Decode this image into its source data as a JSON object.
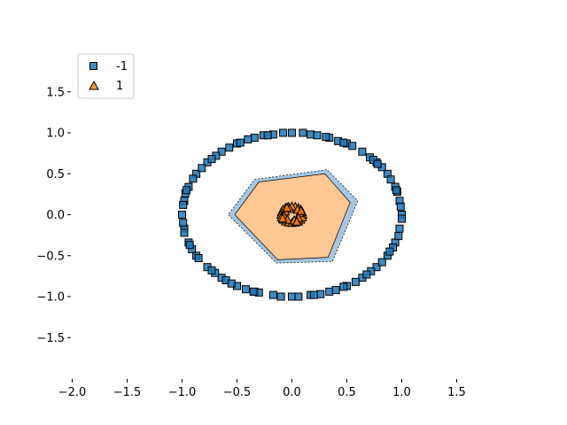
{
  "chart_data": {
    "type": "scatter",
    "title": "",
    "xlabel": "",
    "ylabel": "",
    "xlim": [
      -2.0,
      1.9
    ],
    "ylim": [
      -1.95,
      2.0
    ],
    "xticks": [
      -2.0,
      -1.5,
      -1.0,
      -0.5,
      0.0,
      0.5,
      1.0,
      1.5
    ],
    "xtick_labels": [
      "−2.0",
      "−1.5",
      "−1.0",
      "−0.5",
      "0.0",
      "0.5",
      "1.0",
      "1.5"
    ],
    "yticks": [
      -1.5,
      -1.0,
      -0.5,
      0.0,
      0.5,
      1.0,
      1.5
    ],
    "ytick_labels": [
      "−1.5",
      "−1.0",
      "−0.5",
      "0.0",
      "0.5",
      "1.0",
      "1.5"
    ],
    "grid": false,
    "legend_position": "top-left",
    "series": [
      {
        "name": "-1",
        "marker": "square",
        "color": "#1f77b4",
        "points": [
          [
            1.0,
            0.0
          ],
          [
            0.98,
            0.17
          ],
          [
            0.94,
            0.34
          ],
          [
            0.87,
            0.5
          ],
          [
            0.77,
            0.64
          ],
          [
            0.64,
            0.77
          ],
          [
            0.5,
            0.87
          ],
          [
            0.34,
            0.94
          ],
          [
            0.17,
            0.98
          ],
          [
            0.0,
            1.0
          ],
          [
            -0.17,
            0.98
          ],
          [
            -0.34,
            0.94
          ],
          [
            -0.5,
            0.87
          ],
          [
            -0.64,
            0.77
          ],
          [
            -0.77,
            0.64
          ],
          [
            -0.87,
            0.5
          ],
          [
            -0.94,
            0.34
          ],
          [
            -0.98,
            0.17
          ],
          [
            -1.0,
            0.0
          ],
          [
            -0.98,
            -0.17
          ],
          [
            -0.94,
            -0.34
          ],
          [
            -0.87,
            -0.5
          ],
          [
            -0.77,
            -0.64
          ],
          [
            -0.64,
            -0.77
          ],
          [
            -0.5,
            -0.87
          ],
          [
            -0.34,
            -0.94
          ],
          [
            -0.17,
            -0.98
          ],
          [
            0.0,
            -1.0
          ],
          [
            0.17,
            -0.98
          ],
          [
            0.34,
            -0.94
          ],
          [
            0.5,
            -0.87
          ],
          [
            0.64,
            -0.77
          ],
          [
            0.77,
            -0.64
          ],
          [
            0.87,
            -0.5
          ],
          [
            0.94,
            -0.34
          ],
          [
            0.98,
            -0.17
          ],
          [
            0.99,
            0.1
          ],
          [
            0.9,
            0.43
          ],
          [
            0.71,
            0.7
          ],
          [
            0.42,
            0.9
          ],
          [
            0.1,
            1.0
          ],
          [
            -0.26,
            0.97
          ],
          [
            -0.57,
            0.82
          ],
          [
            -0.82,
            0.57
          ],
          [
            -0.97,
            0.26
          ],
          [
            -0.99,
            -0.1
          ],
          [
            -0.91,
            -0.42
          ],
          [
            -0.7,
            -0.71
          ],
          [
            -0.42,
            -0.91
          ],
          [
            -0.1,
            -1.0
          ],
          [
            0.26,
            -0.97
          ],
          [
            0.58,
            -0.82
          ],
          [
            0.82,
            -0.58
          ],
          [
            0.97,
            -0.26
          ],
          [
            0.96,
            0.28
          ],
          [
            0.82,
            0.58
          ],
          [
            0.55,
            0.84
          ],
          [
            0.23,
            0.97
          ],
          [
            -0.08,
            1.0
          ],
          [
            -0.4,
            0.92
          ],
          [
            -0.69,
            0.72
          ],
          [
            -0.9,
            0.44
          ],
          [
            -0.99,
            0.12
          ],
          [
            -0.98,
            -0.22
          ],
          [
            -0.85,
            -0.53
          ],
          [
            -0.6,
            -0.8
          ],
          [
            -0.3,
            -0.95
          ],
          [
            0.06,
            -1.0
          ],
          [
            0.4,
            -0.92
          ],
          [
            0.72,
            -0.69
          ],
          [
            0.92,
            -0.4
          ],
          [
            1.0,
            -0.05
          ],
          [
            0.95,
            0.3
          ],
          [
            0.74,
            0.67
          ],
          [
            0.47,
            0.88
          ],
          [
            -0.22,
            0.97
          ],
          [
            -0.47,
            0.88
          ],
          [
            -0.73,
            0.68
          ],
          [
            -0.96,
            0.3
          ],
          [
            -0.93,
            -0.37
          ],
          [
            -0.73,
            -0.68
          ],
          [
            -0.55,
            -0.84
          ],
          [
            0.2,
            -0.98
          ],
          [
            0.47,
            -0.88
          ],
          [
            0.68,
            -0.73
          ],
          [
            0.89,
            -0.45
          ],
          [
            0.78,
            0.62
          ],
          [
            -0.35,
            -0.94
          ],
          [
            0.31,
            0.95
          ]
        ]
      },
      {
        "name": "1",
        "marker": "triangle",
        "color": "#ff7f0e",
        "points": [
          [
            0.1,
            0.0
          ],
          [
            0.095,
            0.031
          ],
          [
            0.081,
            0.059
          ],
          [
            0.059,
            0.081
          ],
          [
            0.031,
            0.095
          ],
          [
            0.0,
            0.1
          ],
          [
            -0.031,
            0.095
          ],
          [
            -0.059,
            0.081
          ],
          [
            -0.081,
            0.059
          ],
          [
            -0.095,
            0.031
          ],
          [
            -0.1,
            0.0
          ],
          [
            -0.095,
            -0.031
          ],
          [
            -0.081,
            -0.059
          ],
          [
            -0.059,
            -0.081
          ],
          [
            -0.031,
            -0.095
          ],
          [
            0.0,
            -0.1
          ],
          [
            0.031,
            -0.095
          ],
          [
            0.059,
            -0.081
          ],
          [
            0.081,
            -0.059
          ],
          [
            0.095,
            -0.031
          ],
          [
            0.07,
            0.02
          ],
          [
            0.05,
            0.06
          ],
          [
            -0.02,
            0.07
          ],
          [
            -0.06,
            0.04
          ],
          [
            -0.07,
            -0.02
          ],
          [
            -0.04,
            -0.06
          ],
          [
            0.02,
            -0.07
          ],
          [
            0.06,
            -0.04
          ],
          [
            0.085,
            0.045
          ],
          [
            -0.085,
            -0.045
          ],
          [
            0.045,
            -0.085
          ],
          [
            -0.045,
            0.085
          ]
        ]
      }
    ],
    "decision_regions": {
      "outer_band_color": "#a6c6e1",
      "inner_region_color": "#ffc794",
      "outer_band_polygon": [
        [
          -0.34,
          0.43
        ],
        [
          0.32,
          0.55
        ],
        [
          0.6,
          0.17
        ],
        [
          0.37,
          -0.57
        ],
        [
          -0.14,
          -0.59
        ],
        [
          -0.58,
          0.0
        ]
      ],
      "inner_region_polygon": [
        [
          -0.3,
          0.4
        ],
        [
          0.3,
          0.5
        ],
        [
          0.53,
          0.15
        ],
        [
          0.33,
          -0.52
        ],
        [
          -0.13,
          -0.55
        ],
        [
          -0.52,
          0.0
        ]
      ],
      "inner_class_label": "1",
      "outer_class_label": "-1"
    }
  },
  "legend": {
    "items": [
      {
        "label": "-1",
        "marker": "square",
        "color": "#1f77b4"
      },
      {
        "label": "1",
        "marker": "triangle",
        "color": "#ff7f0e"
      }
    ]
  }
}
